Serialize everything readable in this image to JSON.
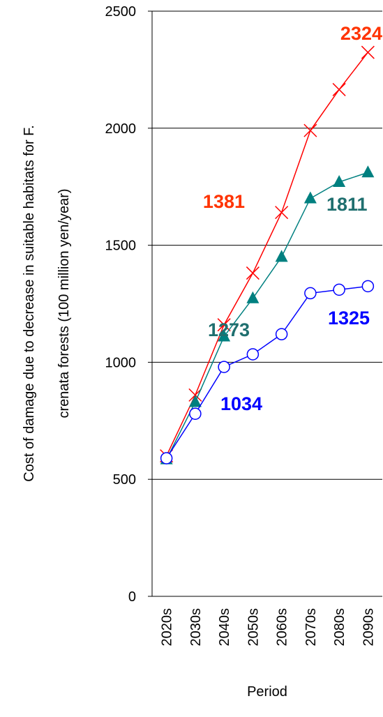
{
  "chart_data": {
    "type": "line",
    "ylabel": [
      "Cost of damage due to decrease in suitable habitats for F.",
      "crenata forests (100 million yen/year)"
    ],
    "xlabel": "Period",
    "categories": [
      "2020s",
      "2030s",
      "2040s",
      "2050s",
      "2060s",
      "2070s",
      "2080s",
      "2090s"
    ],
    "series": [
      {
        "color": "#ff0000",
        "marker": "x",
        "values": [
          600,
          860,
          1160,
          1381,
          1640,
          1990,
          2165,
          2324
        ]
      },
      {
        "color": "#008080",
        "marker": "triangle",
        "values": [
          585,
          830,
          1110,
          1273,
          1450,
          1700,
          1770,
          1811
        ]
      },
      {
        "color": "#0000ff",
        "marker": "circle",
        "values": [
          590,
          780,
          980,
          1034,
          1120,
          1295,
          1310,
          1325
        ]
      }
    ],
    "ylim": [
      0,
      2500
    ],
    "yticks": [
      0,
      500,
      1000,
      1500,
      2000,
      2500
    ],
    "grid": true
  }
}
